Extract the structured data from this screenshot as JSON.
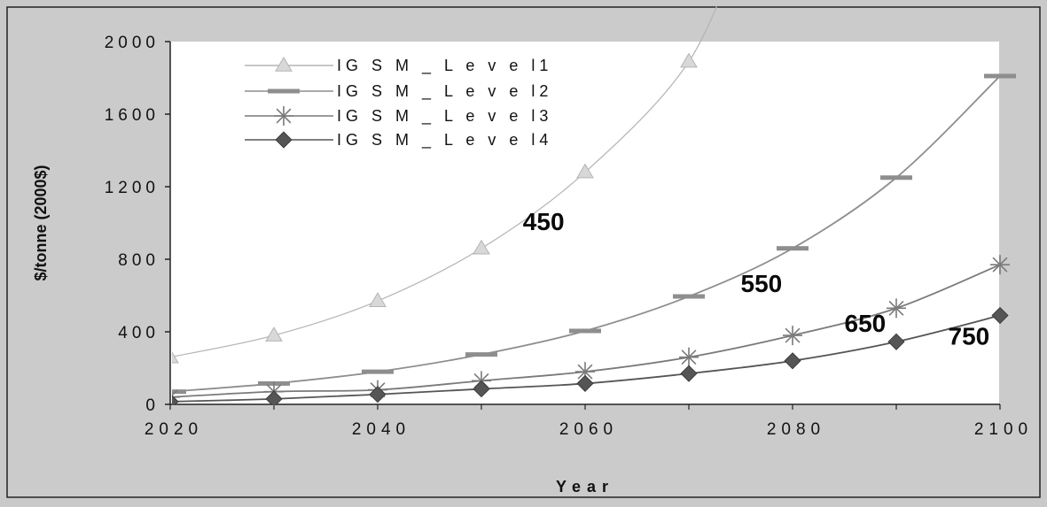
{
  "chart_data": {
    "type": "line",
    "title": "",
    "xlabel": "Year",
    "ylabel": "$/tonne (2000$)",
    "x": [
      2020,
      2030,
      2040,
      2050,
      2060,
      2070,
      2080,
      2090,
      2100
    ],
    "xticks": [
      "2020",
      "2040",
      "2060",
      "2080",
      "2100"
    ],
    "yticks": [
      "0",
      "400",
      "800",
      "1200",
      "1600",
      "2000"
    ],
    "xlim": [
      2020,
      2100
    ],
    "ylim": [
      0,
      2000
    ],
    "grid": false,
    "legend_position": "top-left",
    "series": [
      {
        "name": "IG S M _ L e v e l1",
        "marker": "triangle",
        "color": "#b4b4b4",
        "values": [
          260,
          380,
          570,
          860,
          1280,
          1890,
          null,
          null,
          null
        ]
      },
      {
        "name": "IG S M _ L e v e l2",
        "marker": "dash",
        "color": "#8e8e8e",
        "values": [
          70,
          115,
          180,
          275,
          405,
          595,
          860,
          1250,
          1810
        ]
      },
      {
        "name": "IG S M _ L e v e l3",
        "marker": "star",
        "color": "#7a7a7a",
        "values": [
          40,
          70,
          80,
          130,
          180,
          260,
          380,
          530,
          770
        ]
      },
      {
        "name": "IG S M _ L e v e l4",
        "marker": "diamond",
        "color": "#555555",
        "values": [
          15,
          30,
          55,
          85,
          115,
          170,
          240,
          345,
          490
        ]
      }
    ],
    "annotations": [
      {
        "text": "450",
        "x": 2054,
        "y": 960
      },
      {
        "text": "550",
        "x": 2075,
        "y": 620
      },
      {
        "text": "650",
        "x": 2085,
        "y": 400
      },
      {
        "text": "750",
        "x": 2095,
        "y": 330
      }
    ]
  }
}
